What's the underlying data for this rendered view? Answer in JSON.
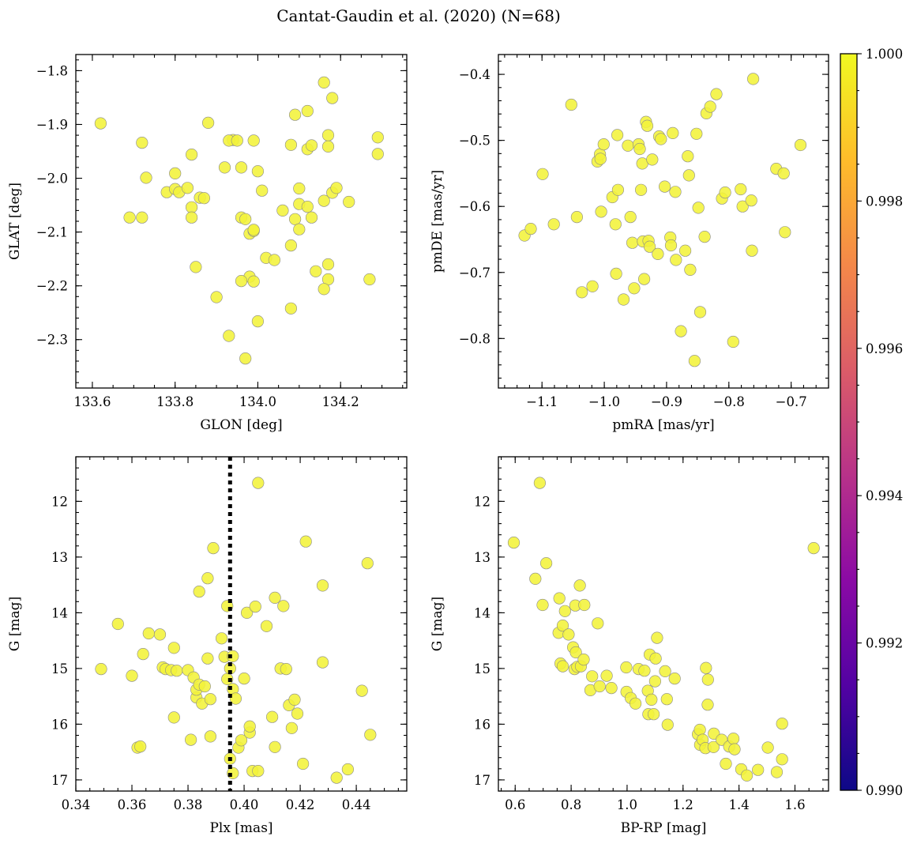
{
  "figure_title": "Cantat-Gaudin et al. (2020) (N=68)",
  "colors": {
    "points": "#f2f23a",
    "point_edge": "#8a8a8a",
    "marker_line": "#000000"
  },
  "colorbar": {
    "cmap": "plasma",
    "stops": [
      "#0d0887",
      "#5302a3",
      "#8b0aa5",
      "#b83289",
      "#db5c68",
      "#f48849",
      "#febd2a",
      "#f0f921"
    ],
    "min": 0.99,
    "max": 1.0,
    "ticks": [
      0.99,
      0.992,
      0.994,
      0.996,
      0.998,
      1.0
    ],
    "tick_labels": [
      "0.990",
      "0.992",
      "0.994",
      "0.996",
      "0.998",
      "1.000"
    ]
  },
  "chart_data": [
    {
      "type": "scatter",
      "xlabel": "GLON [deg]",
      "ylabel": "GLAT [deg]",
      "xlim": [
        133.56,
        134.36
      ],
      "ylim": [
        -2.39,
        -1.77
      ],
      "yinverted": false,
      "xticks": [
        133.6,
        133.8,
        134.0,
        134.2
      ],
      "xtick_labels": [
        "133.6",
        "133.8",
        "134.0",
        "134.2"
      ],
      "xminor": 0.05,
      "yticks": [
        -1.8,
        -1.9,
        -2.0,
        -2.1,
        -2.2,
        -2.3
      ],
      "ytick_labels": [
        "−1.8",
        "−1.9",
        "−2.0",
        "−2.1",
        "−2.2",
        "−2.3"
      ],
      "yminor": 0.02,
      "x": [
        133.62,
        133.72,
        133.73,
        133.69,
        133.72,
        133.8,
        133.78,
        133.8,
        133.81,
        133.83,
        133.84,
        133.84,
        133.86,
        133.87,
        133.84,
        133.85,
        133.88,
        133.9,
        133.92,
        133.94,
        133.93,
        133.95,
        133.96,
        133.96,
        133.99,
        133.97,
        133.98,
        133.99,
        133.99,
        133.98,
        133.97,
        133.96,
        133.99,
        134.0,
        134.02,
        134.0,
        134.01,
        134.04,
        134.06,
        134.08,
        134.08,
        134.09,
        134.1,
        134.09,
        134.1,
        134.1,
        134.12,
        134.12,
        134.13,
        134.13,
        134.14,
        134.12,
        134.16,
        134.16,
        134.17,
        134.18,
        134.17,
        134.17,
        134.17,
        134.18,
        134.16,
        134.19,
        134.22,
        134.27,
        134.29,
        134.29,
        134.08,
        133.93
      ],
      "y": [
        -1.898,
        -1.934,
        -1.999,
        -2.073,
        -2.073,
        -1.991,
        -2.026,
        -2.02,
        -2.026,
        -2.018,
        -2.054,
        -2.073,
        -2.036,
        -2.037,
        -1.956,
        -2.165,
        -1.897,
        -2.221,
        -1.98,
        -1.929,
        -1.93,
        -1.93,
        -1.98,
        -2.073,
        -1.93,
        -2.076,
        -2.103,
        -2.098,
        -2.096,
        -2.183,
        -2.335,
        -2.191,
        -2.192,
        -1.987,
        -2.148,
        -2.266,
        -2.023,
        -2.152,
        -2.06,
        -2.125,
        -2.242,
        -1.882,
        -2.019,
        -2.076,
        -2.048,
        -2.095,
        -1.946,
        -2.053,
        -2.073,
        -1.939,
        -2.173,
        -1.875,
        -2.042,
        -1.822,
        -1.92,
        -2.027,
        -2.188,
        -1.941,
        -2.16,
        -1.851,
        -2.206,
        -2.018,
        -2.044,
        -2.188,
        -1.924,
        -1.955,
        -1.938,
        -2.293
      ]
    },
    {
      "type": "scatter",
      "xlabel": "pmRA [mas/yr]",
      "ylabel": "pmDE [mas/yr]",
      "xlim": [
        -1.17,
        -0.64
      ],
      "ylim": [
        -0.875,
        -0.37
      ],
      "yinverted": false,
      "xticks": [
        -1.1,
        -1.0,
        -0.9,
        -0.8,
        -0.7
      ],
      "xtick_labels": [
        "−1.1",
        "−1.0",
        "−0.9",
        "−0.8",
        "−0.7"
      ],
      "xminor": 0.02,
      "yticks": [
        -0.4,
        -0.5,
        -0.6,
        -0.7,
        -0.8
      ],
      "ytick_labels": [
        "−0.4",
        "−0.5",
        "−0.6",
        "−0.7",
        "−0.8"
      ],
      "yminor": 0.02,
      "x": [
        -1.128,
        -1.118,
        -1.099,
        -1.081,
        -1.053,
        -1.044,
        -1.036,
        -1.019,
        -1.011,
        -1.007,
        -1.006,
        -1.005,
        -1.001,
        -0.987,
        -0.982,
        -0.981,
        -0.979,
        -0.978,
        -0.969,
        -0.962,
        -0.958,
        -0.955,
        -0.952,
        -0.945,
        -0.943,
        -0.941,
        -0.939,
        -0.938,
        -0.936,
        -0.933,
        -0.931,
        -0.929,
        -0.927,
        -0.923,
        -0.914,
        -0.912,
        -0.909,
        -0.903,
        -0.894,
        -0.893,
        -0.89,
        -0.886,
        -0.885,
        -0.877,
        -0.87,
        -0.866,
        -0.864,
        -0.862,
        -0.855,
        -0.852,
        -0.849,
        -0.846,
        -0.839,
        -0.836,
        -0.83,
        -0.82,
        -0.811,
        -0.806,
        -0.793,
        -0.781,
        -0.778,
        -0.764,
        -0.763,
        -0.761,
        -0.724,
        -0.712,
        -0.71,
        -0.685
      ],
      "y": [
        -0.644,
        -0.634,
        -0.551,
        -0.627,
        -0.446,
        -0.616,
        -0.73,
        -0.721,
        -0.532,
        -0.521,
        -0.528,
        -0.608,
        -0.506,
        -0.586,
        -0.627,
        -0.702,
        -0.492,
        -0.575,
        -0.741,
        -0.508,
        -0.616,
        -0.655,
        -0.724,
        -0.506,
        -0.513,
        -0.575,
        -0.535,
        -0.653,
        -0.71,
        -0.472,
        -0.478,
        -0.652,
        -0.661,
        -0.529,
        -0.672,
        -0.494,
        -0.498,
        -0.57,
        -0.647,
        -0.659,
        -0.489,
        -0.578,
        -0.681,
        -0.789,
        -0.667,
        -0.524,
        -0.553,
        -0.696,
        -0.834,
        -0.49,
        -0.602,
        -0.76,
        -0.646,
        -0.459,
        -0.449,
        -0.43,
        -0.588,
        -0.579,
        -0.805,
        -0.574,
        -0.6,
        -0.591,
        -0.667,
        -0.407,
        -0.543,
        -0.55,
        -0.639,
        -0.507
      ]
    },
    {
      "type": "scatter",
      "xlabel": "Plx [mas]",
      "ylabel": "G [mag]",
      "xlim": [
        0.34,
        0.458
      ],
      "ylim": [
        11.2,
        17.2
      ],
      "yinverted": true,
      "xticks": [
        0.34,
        0.36,
        0.38,
        0.4,
        0.42,
        0.44
      ],
      "xtick_labels": [
        "0.34",
        "0.36",
        "0.38",
        "0.40",
        "0.42",
        "0.44"
      ],
      "xminor": 0.005,
      "yticks": [
        12,
        13,
        14,
        15,
        16,
        17
      ],
      "ytick_labels": [
        "12",
        "13",
        "14",
        "15",
        "16",
        "17"
      ],
      "yminor": 0.2,
      "vline": 0.395,
      "x": [
        0.349,
        0.355,
        0.36,
        0.362,
        0.363,
        0.364,
        0.366,
        0.37,
        0.371,
        0.372,
        0.374,
        0.375,
        0.375,
        0.376,
        0.38,
        0.381,
        0.382,
        0.383,
        0.383,
        0.384,
        0.384,
        0.385,
        0.386,
        0.387,
        0.387,
        0.388,
        0.388,
        0.389,
        0.392,
        0.393,
        0.394,
        0.394,
        0.395,
        0.395,
        0.396,
        0.396,
        0.396,
        0.397,
        0.398,
        0.399,
        0.4,
        0.401,
        0.402,
        0.402,
        0.403,
        0.404,
        0.405,
        0.405,
        0.408,
        0.41,
        0.411,
        0.411,
        0.413,
        0.414,
        0.415,
        0.416,
        0.417,
        0.418,
        0.419,
        0.421,
        0.422,
        0.428,
        0.428,
        0.433,
        0.437,
        0.442,
        0.444,
        0.445
      ],
      "y": [
        15.01,
        14.2,
        15.13,
        16.42,
        16.4,
        14.74,
        14.37,
        14.39,
        14.98,
        15.01,
        15.03,
        15.88,
        14.63,
        15.04,
        15.03,
        16.28,
        15.16,
        15.52,
        15.38,
        13.62,
        15.29,
        15.63,
        15.32,
        14.82,
        13.38,
        16.22,
        15.55,
        12.84,
        14.46,
        14.79,
        13.88,
        15.19,
        16.62,
        15.0,
        16.88,
        14.78,
        15.37,
        15.54,
        16.42,
        16.29,
        15.18,
        14.0,
        16.15,
        16.04,
        16.84,
        13.89,
        11.67,
        16.84,
        14.24,
        15.87,
        16.41,
        13.73,
        15.0,
        13.88,
        15.01,
        15.66,
        16.07,
        15.56,
        15.81,
        16.71,
        12.72,
        13.51,
        14.89,
        16.96,
        16.81,
        15.4,
        13.11,
        16.19
      ]
    },
    {
      "type": "scatter",
      "xlabel": "BP-RP [mag]",
      "ylabel": "G [mag]",
      "xlim": [
        0.54,
        1.72
      ],
      "ylim": [
        11.2,
        17.2
      ],
      "yinverted": true,
      "xticks": [
        0.6,
        0.8,
        1.0,
        1.2,
        1.4,
        1.6
      ],
      "xtick_labels": [
        "0.6",
        "0.8",
        "1.0",
        "1.2",
        "1.4",
        "1.6"
      ],
      "xminor": 0.05,
      "yticks": [
        12,
        13,
        14,
        15,
        16,
        17
      ],
      "ytick_labels": [
        "12",
        "13",
        "14",
        "15",
        "16",
        "17"
      ],
      "yminor": 0.2,
      "x": [
        0.595,
        0.672,
        0.688,
        0.698,
        0.711,
        0.755,
        0.758,
        0.762,
        0.77,
        0.77,
        0.778,
        0.791,
        0.807,
        0.812,
        0.817,
        0.815,
        0.822,
        0.831,
        0.835,
        0.845,
        0.847,
        0.869,
        0.875,
        0.895,
        0.902,
        0.927,
        0.944,
        0.997,
        0.998,
        1.013,
        1.03,
        1.041,
        1.062,
        1.074,
        1.076,
        1.081,
        1.087,
        1.095,
        1.1,
        1.102,
        1.107,
        1.136,
        1.142,
        1.145,
        1.17,
        1.253,
        1.26,
        1.261,
        1.27,
        1.28,
        1.282,
        1.289,
        1.288,
        1.31,
        1.309,
        1.338,
        1.353,
        1.365,
        1.38,
        1.384,
        1.408,
        1.428,
        1.468,
        1.503,
        1.535,
        1.554,
        1.554,
        1.667
      ],
      "y": [
        12.74,
        13.39,
        11.67,
        13.86,
        13.11,
        14.36,
        13.74,
        14.91,
        14.96,
        14.23,
        13.97,
        14.39,
        14.62,
        15.01,
        14.71,
        13.87,
        14.97,
        13.51,
        14.96,
        14.84,
        13.86,
        15.39,
        15.14,
        14.19,
        15.32,
        15.13,
        15.35,
        14.98,
        15.42,
        15.53,
        15.63,
        15.01,
        15.04,
        15.4,
        15.82,
        14.75,
        15.56,
        15.82,
        15.23,
        14.82,
        14.45,
        15.05,
        15.55,
        16.01,
        15.18,
        16.18,
        16.1,
        16.37,
        16.28,
        16.43,
        14.99,
        15.2,
        15.65,
        16.17,
        16.41,
        16.28,
        16.71,
        16.4,
        16.26,
        16.45,
        16.81,
        16.92,
        16.82,
        16.42,
        16.86,
        15.99,
        16.63,
        12.84
      ]
    }
  ]
}
